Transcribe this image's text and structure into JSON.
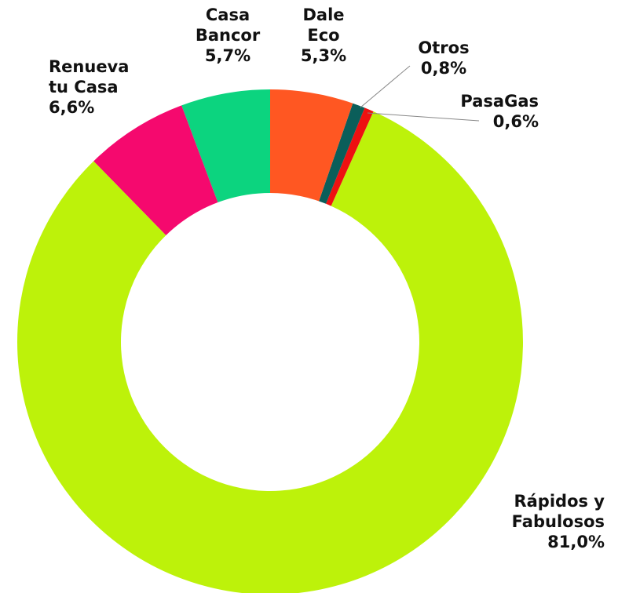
{
  "chart_data": {
    "type": "donut",
    "categories": [
      "Dale\nEco",
      "Otros",
      "PasaGas",
      "Rápidos y\nFabulosos",
      "Renueva\ntu Casa",
      "Casa\nBancor"
    ],
    "values": [
      5.3,
      0.8,
      0.6,
      81.0,
      6.6,
      5.7
    ],
    "value_labels": [
      "5,3%",
      "0,8%",
      "0,6%",
      "81,0%",
      "6,6%",
      "5,7%"
    ],
    "colors": [
      "#ff5722",
      "#0b5e5a",
      "#ee1111",
      "#bdf20a",
      "#f5096e",
      "#0cd47f"
    ]
  }
}
